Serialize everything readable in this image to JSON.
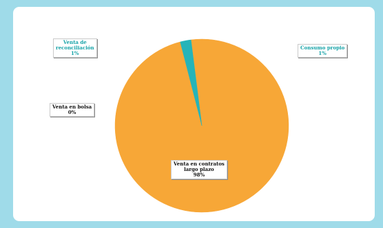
{
  "colors": {
    "background": "#9fdbe9",
    "slice_main": "#f7a737",
    "slice_teal": "#25b4b9",
    "label_teal": "#17a3a8"
  },
  "chart_data": {
    "type": "pie",
    "slices": [
      {
        "label": "Venta en contratos largo plazo",
        "value": 98,
        "value_label": "98%",
        "color": "#f7a737"
      },
      {
        "label": "Venta en bolsa",
        "value": 0,
        "value_label": "0%",
        "color": "#f7a737"
      },
      {
        "label": "Venta de reconciliación",
        "value": 1,
        "value_label": "1%",
        "color": "#25b4b9"
      },
      {
        "label": "Consumo propio",
        "value": 1,
        "value_label": "1%",
        "color": "#25b4b9"
      }
    ]
  },
  "labels": {
    "reconciliacion": {
      "line1": "Venta de",
      "line2": "reconciliación",
      "pct": "1%"
    },
    "consumo": {
      "line1": "Consumo propio",
      "pct": "1%"
    },
    "bolsa": {
      "line1": "Venta en bolsa",
      "pct": "0%"
    },
    "contratos": {
      "line1": "Venta en contratos",
      "line2": "largo plazo",
      "pct": "98%"
    }
  }
}
